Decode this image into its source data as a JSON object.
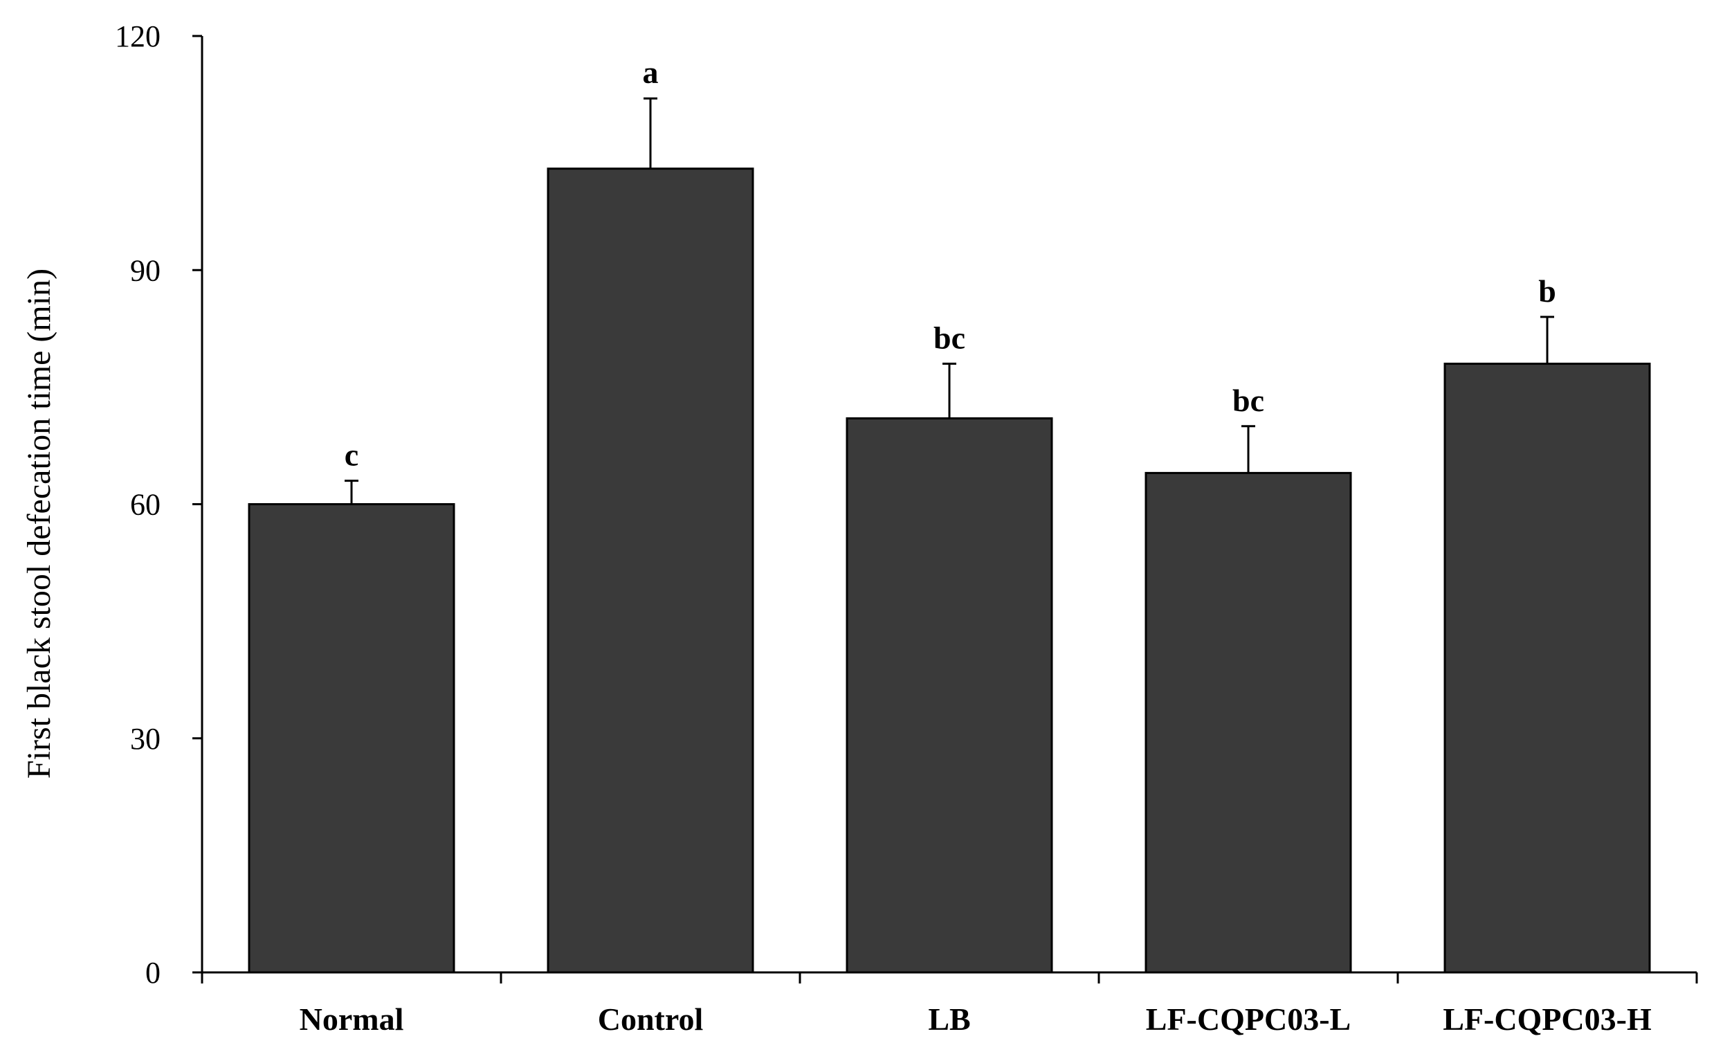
{
  "chart_data": {
    "type": "bar",
    "title": "",
    "xlabel": "",
    "ylabel": "First black stool defecation time (min)",
    "ylim": [
      0,
      120
    ],
    "yticks": [
      0,
      30,
      60,
      90,
      120
    ],
    "grid": false,
    "categories": [
      "Normal",
      "Control",
      "LB",
      "LF-CQPC03-L",
      "LF-CQPC03-H"
    ],
    "series": [
      {
        "name": "First black stool defecation time",
        "values": [
          60,
          103,
          71,
          64,
          78
        ],
        "errors": [
          3,
          9,
          7,
          6,
          6
        ],
        "color": "#3a3a3a"
      }
    ],
    "significance_labels": [
      "c",
      "a",
      "bc",
      "bc",
      "b"
    ]
  }
}
